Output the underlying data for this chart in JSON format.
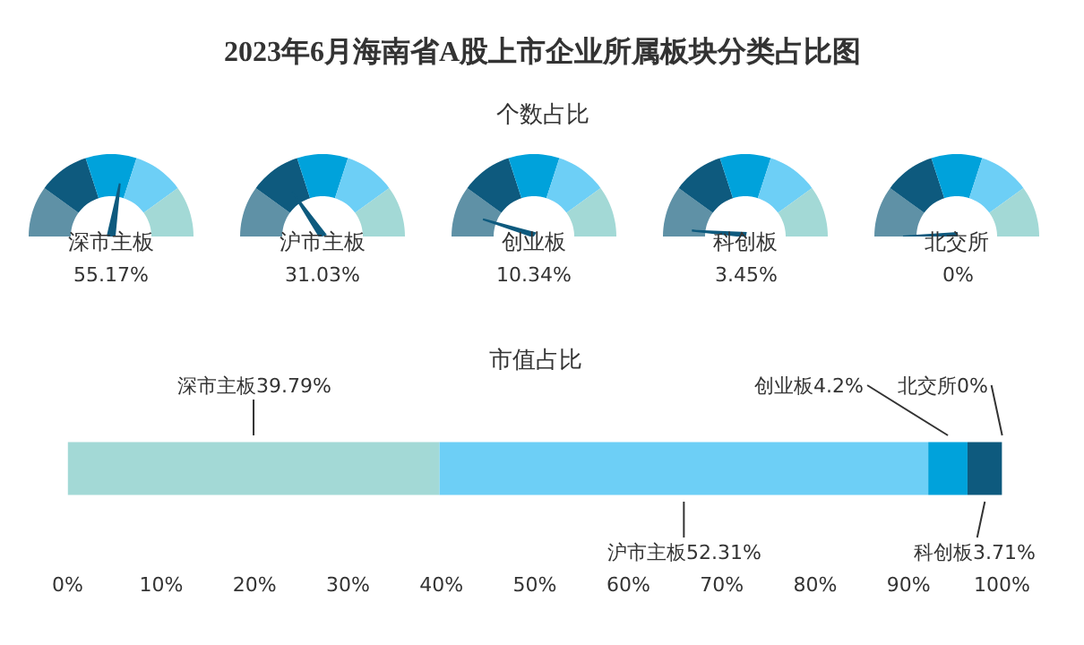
{
  "chart_data": [
    {
      "type": "other",
      "title": "2023年6月海南省A股上市企业所属板块分类占比图",
      "subtitle": "个数占比",
      "categories": [
        "深市主板",
        "沪市主板",
        "创业板",
        "科创板",
        "北交所"
      ],
      "values": [
        55.17,
        31.03,
        10.34,
        3.45,
        0
      ],
      "value_labels": [
        "55.17%",
        "31.03%",
        "10.34%",
        "3.45%",
        "0%"
      ]
    },
    {
      "type": "bar",
      "subtitle": "市值占比",
      "orientation": "horizontal",
      "stacked": true,
      "categories": [
        null
      ],
      "series": [
        {
          "name": "深市主板",
          "color": "#a3d9d6",
          "values": [
            39.79
          ],
          "value_labels": [
            "39.79%"
          ]
        },
        {
          "name": "沪市主板",
          "color": "#6dcff6",
          "values": [
            52.31
          ],
          "value_labels": [
            "52.31%"
          ]
        },
        {
          "name": "创业板",
          "color": "#00a2db",
          "values": [
            4.2
          ],
          "value_labels": [
            "4.2%"
          ]
        },
        {
          "name": "科创板",
          "color": "#0e5a7e",
          "values": [
            3.71
          ],
          "value_labels": [
            "3.71%"
          ]
        },
        {
          "name": "北交所",
          "color": "#0e5a7e",
          "values": [
            0
          ],
          "value_labels": [
            "0%"
          ]
        }
      ],
      "xlim": [
        0,
        100
      ],
      "xticks": [
        {
          "value": 0,
          "label": "0%"
        },
        {
          "value": 10,
          "label": "10%"
        },
        {
          "value": 20,
          "label": "20%"
        },
        {
          "value": 30,
          "label": "30%"
        },
        {
          "value": 40,
          "label": "40%"
        },
        {
          "value": 50,
          "label": "50%"
        },
        {
          "value": 60,
          "label": "60%"
        },
        {
          "value": 70,
          "label": "70%"
        },
        {
          "value": 80,
          "label": "80%"
        },
        {
          "value": 90,
          "label": "90%"
        },
        {
          "value": 100,
          "label": "100%"
        }
      ],
      "tick_labels": "x"
    }
  ]
}
